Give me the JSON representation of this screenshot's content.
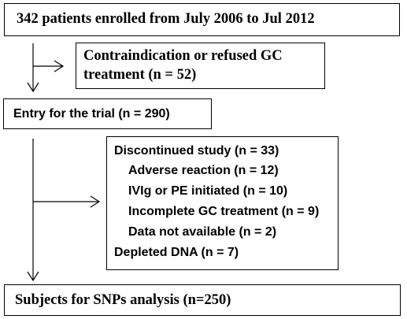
{
  "enrolled": "342 patients enrolled from July 2006 to Jul 2012",
  "excluded": {
    "line1": "Contraindication or refused GC",
    "line2": "treatment (n = 52)"
  },
  "entry": "Entry for the trial (n = 290)",
  "dropout": {
    "discontinued": "Discontinued study (n = 33)",
    "reasons": [
      "Adverse reaction (n = 12)",
      "IVIg or PE initiated (n = 10)",
      "Incomplete GC treatment (n = 9)",
      "Data not available (n = 2)"
    ],
    "depleted": "Depleted DNA (n = 7)"
  },
  "analysis": "Subjects for SNPs analysis (n=250)"
}
